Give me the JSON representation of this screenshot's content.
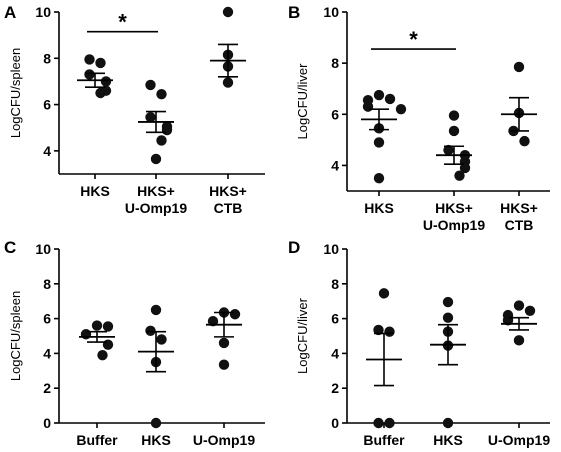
{
  "chart_data": [
    {
      "panel": "A",
      "type": "scatter",
      "ylabel": "LogCFU/spleen",
      "ylim": [
        3,
        11
      ],
      "yticks": [
        4,
        6,
        8,
        10
      ],
      "categories": [
        [
          "HKS"
        ],
        [
          "HKS+",
          "U-Omp19"
        ],
        [
          "HKS+",
          "CTB"
        ]
      ],
      "groups": [
        {
          "points": [
            7.95,
            7.8,
            7.3,
            7.0,
            6.6,
            6.5
          ],
          "mean": 7.05,
          "sem": [
            6.75,
            7.35
          ]
        },
        {
          "points": [
            6.85,
            6.45,
            5.45,
            5.05,
            4.9,
            4.45,
            3.65
          ],
          "mean": 5.25,
          "sem": [
            4.8,
            5.7
          ]
        },
        {
          "points": [
            10.0,
            8.15,
            7.65,
            6.95
          ],
          "mean": 7.9,
          "sem": [
            7.2,
            8.6
          ]
        }
      ],
      "significance": [
        {
          "from": 0,
          "to": 1,
          "y": 9.15,
          "label": "*"
        }
      ]
    },
    {
      "panel": "B",
      "type": "scatter",
      "ylabel": "LogCFU/liver",
      "ylim": [
        3,
        10
      ],
      "yticks": [
        4,
        6,
        8,
        10
      ],
      "categories": [
        [
          "HKS"
        ],
        [
          "HKS+",
          "U-Omp19"
        ],
        [
          "HKS+",
          "CTB"
        ]
      ],
      "groups": [
        {
          "points": [
            6.75,
            6.6,
            6.55,
            6.3,
            6.2,
            5.45,
            4.9,
            3.5
          ],
          "mean": 5.8,
          "sem": [
            5.4,
            6.2
          ]
        },
        {
          "points": [
            5.95,
            5.35,
            4.6,
            4.4,
            4.15,
            3.9,
            3.6
          ],
          "mean": 4.4,
          "sem": [
            4.05,
            4.75
          ]
        },
        {
          "points": [
            7.85,
            6.05,
            5.35,
            4.95
          ],
          "mean": 6.0,
          "sem": [
            5.35,
            6.65
          ]
        }
      ],
      "significance": [
        {
          "from": 0,
          "to": 1,
          "y": 8.55,
          "label": "*"
        }
      ]
    },
    {
      "panel": "C",
      "type": "scatter",
      "ylabel": "LogCFU/spleen",
      "ylim": [
        0,
        10
      ],
      "yticks": [
        0,
        2,
        4,
        6,
        8,
        10
      ],
      "categories": [
        [
          "Buffer"
        ],
        [
          "HKS"
        ],
        [
          "U-Omp19"
        ]
      ],
      "groups": [
        {
          "points": [
            5.6,
            5.55,
            5.1,
            4.5,
            3.9
          ],
          "mean": 4.95,
          "sem": [
            4.65,
            5.25
          ]
        },
        {
          "points": [
            6.5,
            5.3,
            4.8,
            3.5,
            0.0
          ],
          "mean": 4.1,
          "sem": [
            2.95,
            5.25
          ]
        },
        {
          "points": [
            6.35,
            6.25,
            5.85,
            4.6,
            3.35
          ],
          "mean": 5.65,
          "sem": [
            4.95,
            6.35
          ]
        }
      ],
      "significance": []
    },
    {
      "panel": "D",
      "type": "scatter",
      "ylabel": "LogCFU/liver",
      "ylim": [
        0,
        10
      ],
      "yticks": [
        0,
        2,
        4,
        6,
        8,
        10
      ],
      "categories": [
        [
          "Buffer"
        ],
        [
          "HKS"
        ],
        [
          "U-Omp19"
        ]
      ],
      "groups": [
        {
          "points": [
            7.45,
            5.35,
            5.25,
            0.0,
            0.0
          ],
          "mean": 3.65,
          "sem": [
            2.15,
            5.15
          ]
        },
        {
          "points": [
            6.95,
            6.05,
            5.25,
            4.45,
            0.0
          ],
          "mean": 4.5,
          "sem": [
            3.35,
            5.65
          ]
        },
        {
          "points": [
            6.75,
            6.45,
            6.2,
            5.9,
            4.75
          ],
          "mean": 5.7,
          "sem": [
            5.35,
            6.05
          ]
        }
      ],
      "significance": []
    }
  ]
}
